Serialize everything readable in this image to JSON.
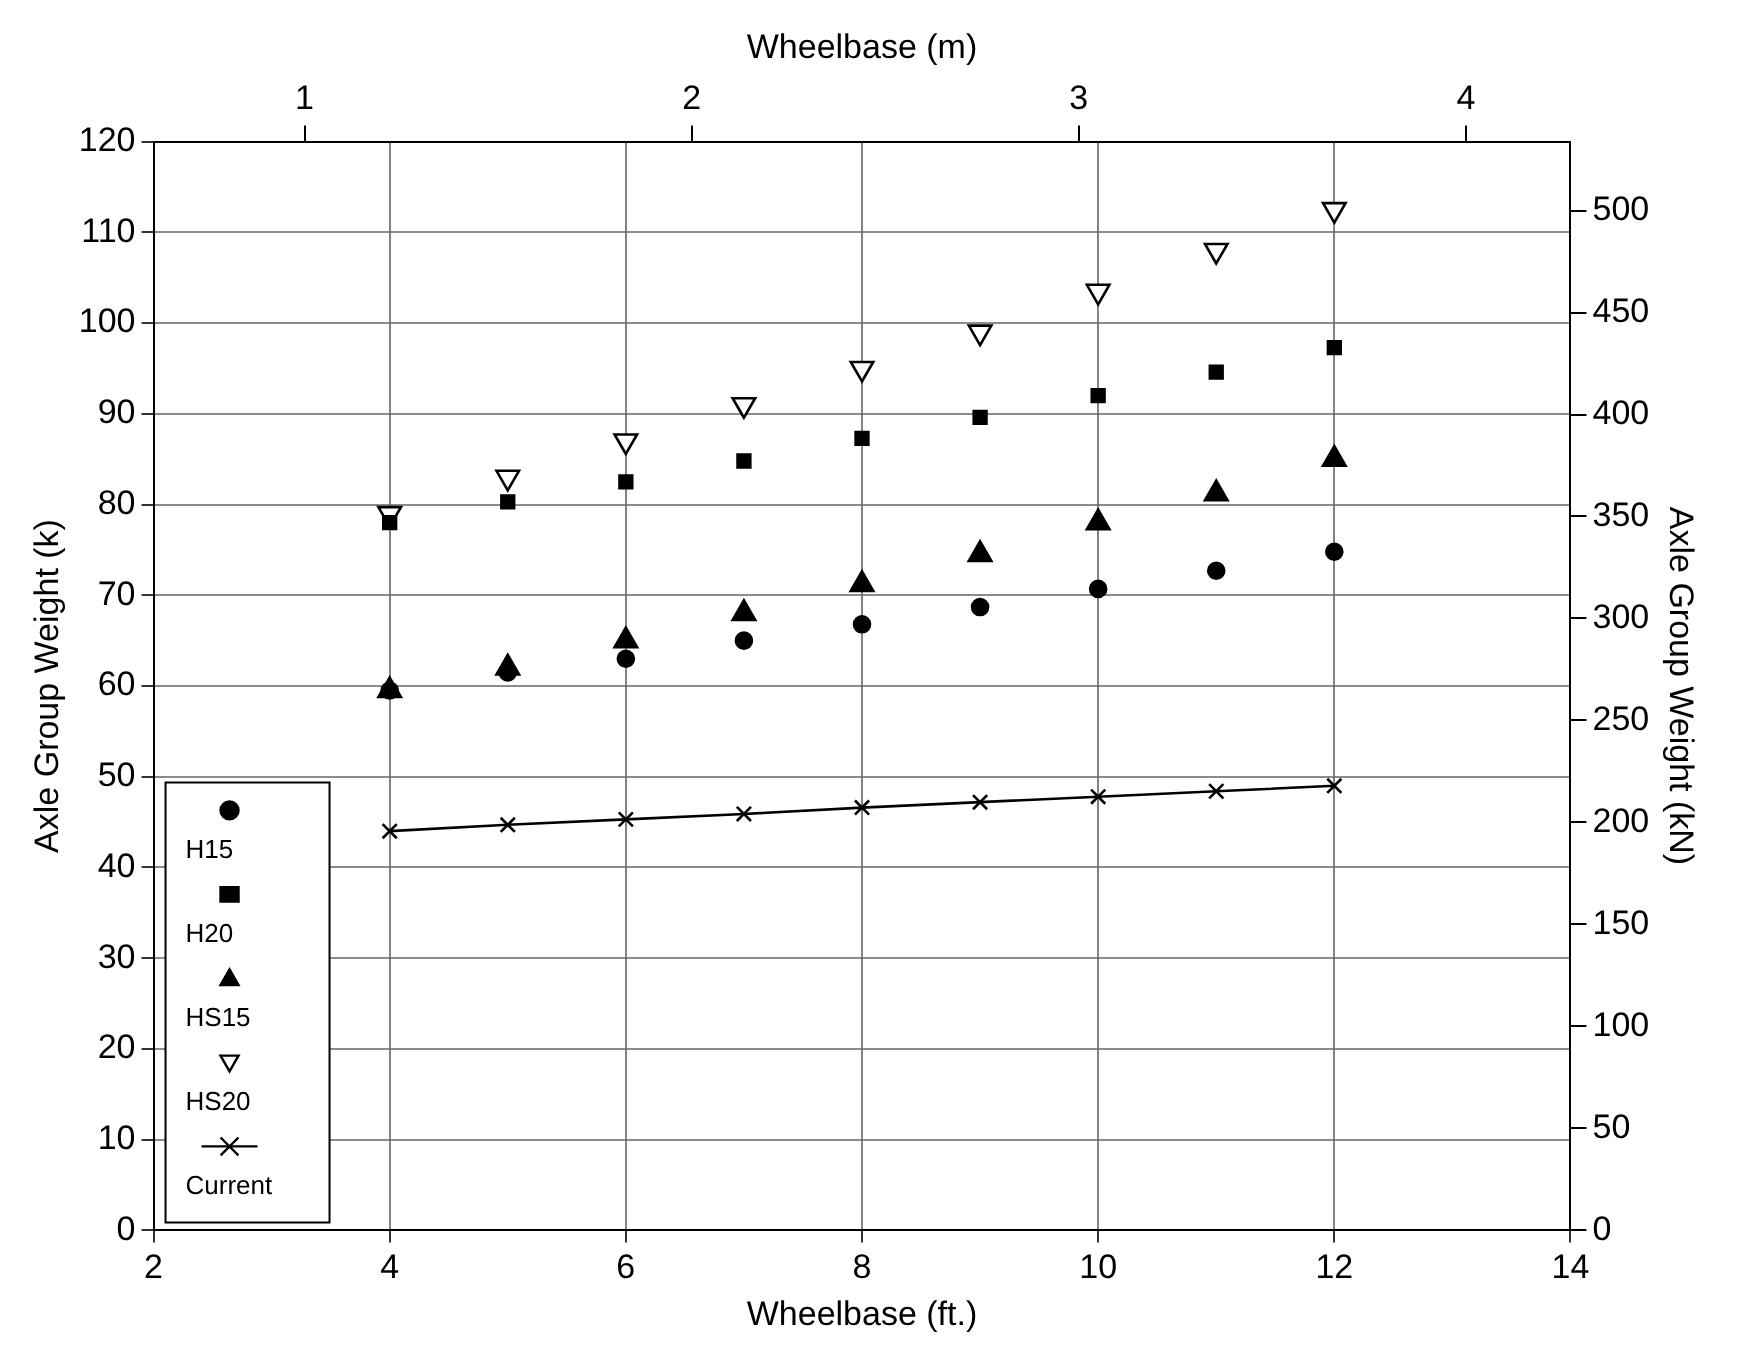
{
  "chart_data": {
    "type": "scatter",
    "xlabel": "Wheelbase (ft.)",
    "ylabel": "Axle Group Weight (k)",
    "y2label": "Axle Group Weight (kN)",
    "x2label": "Wheelbase (m)",
    "x": [
      4,
      5,
      6,
      7,
      8,
      9,
      10,
      11,
      12
    ],
    "series": [
      {
        "name": "H15",
        "color": "#000000",
        "marker": "circle",
        "values": [
          59.5,
          61.5,
          63,
          65,
          66.8,
          68.7,
          70.7,
          72.7,
          74.8
        ]
      },
      {
        "name": "H20",
        "color": "#000000",
        "marker": "square",
        "values": [
          78,
          80.3,
          82.5,
          84.8,
          87.3,
          89.6,
          92,
          94.6,
          97.3
        ]
      },
      {
        "name": "HS15",
        "color": "#000000",
        "marker": "triangle",
        "values": [
          59.5,
          62,
          65,
          68,
          71.2,
          74.5,
          78,
          81.2,
          85
        ]
      },
      {
        "name": "HS20",
        "color": "#000000",
        "marker": "triangle-down",
        "values": [
          79,
          83,
          87,
          91,
          95,
          99,
          103.5,
          108,
          112.5
        ]
      },
      {
        "name": "Current",
        "type": "line",
        "color": "#000000",
        "marker": "cross",
        "line_style": "solid",
        "values": [
          44,
          44.7,
          45.3,
          45.9,
          46.6,
          47.2,
          47.8,
          48.4,
          49
        ]
      }
    ],
    "xlim": [
      2,
      14
    ],
    "xticks": [
      2,
      4,
      6,
      8,
      10,
      12,
      14
    ],
    "ylim": [
      0,
      120
    ],
    "yticks": [
      0,
      10,
      20,
      30,
      40,
      50,
      60,
      70,
      80,
      90,
      100,
      110,
      120
    ],
    "y2lim": [
      0,
      533.8
    ],
    "y2ticks": [
      0,
      50,
      100,
      150,
      200,
      250,
      300,
      350,
      400,
      450,
      500
    ],
    "x2lim": [
      0.61,
      4.27
    ],
    "x2ticks": [
      1,
      2,
      3,
      4
    ],
    "grid": true,
    "legend": "bottom left"
  }
}
